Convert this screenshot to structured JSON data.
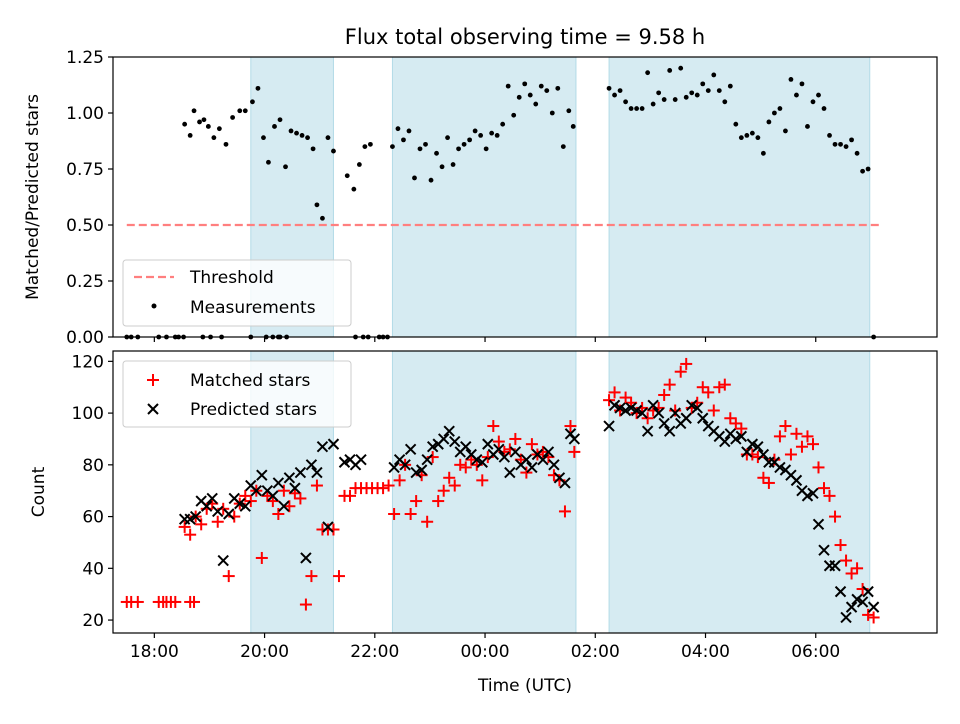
{
  "chart_data": [
    {
      "type": "scatter",
      "title": "Flux total observing time = 9.58 h",
      "ylabel": "Matched/Predicted stars",
      "xlabel": "",
      "x_unit": "hours from 00:00 UTC",
      "xlim": [
        -6.75,
        8.2
      ],
      "ylim": [
        0,
        1.25
      ],
      "yticks": [
        0.0,
        0.25,
        0.5,
        0.75,
        1.0,
        1.25
      ],
      "ytick_labels": [
        "0.00",
        "0.25",
        "0.50",
        "0.75",
        "1.00",
        "1.25"
      ],
      "threshold": {
        "name": "Threshold",
        "value": 0.5,
        "x": [
          -6.5,
          7.2
        ],
        "color": "#ff7f7f"
      },
      "legend": {
        "position": "lower-left",
        "entries": [
          "Threshold",
          "Measurements"
        ]
      },
      "shaded_intervals": [
        [
          -4.25,
          -2.75
        ],
        [
          -1.68,
          1.65
        ],
        [
          2.25,
          6.98
        ]
      ],
      "series": [
        {
          "name": "Measurements",
          "color": "#000000",
          "x": [
            -6.5,
            -6.42,
            -6.3,
            -5.92,
            -5.78,
            -5.62,
            -5.56,
            -5.47,
            -5.12,
            -4.98,
            -4.78,
            -4.25,
            -3.97,
            -3.85,
            -3.72,
            -3.75,
            -3.6,
            -2.35,
            -2.21,
            -2.12,
            -1.92,
            -1.85,
            -1.77,
            -5.45,
            -5.35,
            -5.28,
            -5.18,
            -5.1,
            -5.02,
            -4.92,
            -4.82,
            -4.7,
            -4.58,
            -4.45,
            -4.35,
            -4.22,
            -4.12,
            -4.02,
            -3.93,
            -3.82,
            -3.72,
            -3.62,
            -3.52,
            -3.42,
            -3.32,
            -3.22,
            -3.12,
            -3.05,
            -2.95,
            -2.85,
            -2.75,
            -2.5,
            -2.38,
            -2.28,
            -2.18,
            -2.08,
            -1.68,
            -1.58,
            -1.48,
            -1.38,
            -1.28,
            -1.18,
            -1.08,
            -0.98,
            -0.88,
            -0.78,
            -0.68,
            -0.58,
            -0.48,
            -0.38,
            -0.28,
            -0.18,
            -0.08,
            0.02,
            0.12,
            0.22,
            0.32,
            0.42,
            0.52,
            0.62,
            0.72,
            0.82,
            0.92,
            1.02,
            1.12,
            1.22,
            1.32,
            1.42,
            1.52,
            1.6,
            2.25,
            2.35,
            2.45,
            2.55,
            2.65,
            2.75,
            2.85,
            2.95,
            3.05,
            3.15,
            3.25,
            3.35,
            3.45,
            3.55,
            3.65,
            3.75,
            3.85,
            3.95,
            4.05,
            4.15,
            4.25,
            4.35,
            4.45,
            4.55,
            4.65,
            4.75,
            4.85,
            4.95,
            5.05,
            5.15,
            5.25,
            5.35,
            5.45,
            5.55,
            5.65,
            5.75,
            5.85,
            5.95,
            6.05,
            6.15,
            6.25,
            6.35,
            6.45,
            6.55,
            6.65,
            6.75,
            6.85,
            6.95,
            7.05
          ],
          "y": [
            0,
            0,
            0,
            0,
            0,
            0,
            0,
            0,
            0,
            0,
            0,
            0,
            0,
            0,
            0,
            0,
            0,
            0,
            0,
            0,
            0,
            0,
            0,
            0.95,
            0.9,
            1.01,
            0.96,
            0.97,
            0.94,
            0.89,
            0.93,
            0.86,
            0.98,
            1.01,
            1.01,
            1.05,
            1.11,
            0.89,
            0.78,
            0.94,
            0.97,
            0.76,
            0.92,
            0.91,
            0.9,
            0.89,
            0.84,
            0.59,
            0.53,
            0.89,
            0.83,
            0.72,
            0.66,
            0.77,
            0.85,
            0.86,
            0.85,
            0.93,
            0.88,
            0.92,
            0.71,
            0.84,
            0.86,
            0.7,
            0.82,
            0.76,
            0.89,
            0.77,
            0.84,
            0.86,
            0.88,
            0.92,
            0.9,
            0.84,
            0.91,
            0.9,
            0.95,
            1.12,
            0.99,
            1.07,
            1.13,
            1.08,
            1.04,
            1.12,
            1.1,
            1.0,
            1.11,
            0.85,
            1.01,
            0.94,
            1.11,
            1.08,
            1.1,
            1.05,
            1.02,
            1.02,
            1.02,
            1.18,
            1.04,
            1.09,
            1.06,
            1.19,
            1.06,
            1.2,
            1.07,
            1.09,
            1.08,
            1.13,
            1.1,
            1.17,
            1.1,
            1.05,
            1.12,
            0.95,
            0.89,
            0.9,
            0.91,
            0.89,
            0.82,
            0.96,
            1.0,
            1.02,
            0.92,
            1.15,
            1.08,
            1.13,
            0.94,
            1.05,
            1.08,
            1.02,
            0.9,
            0.86,
            0.86,
            0.85,
            0.88,
            0.82,
            0.74,
            0.75,
            0.0
          ]
        }
      ]
    },
    {
      "type": "scatter",
      "title": "",
      "xlabel": "Time (UTC)",
      "ylabel": "Count",
      "x_unit": "hours from 00:00 UTC",
      "xlim": [
        -6.75,
        8.2
      ],
      "ylim": [
        15,
        124
      ],
      "xticks": [
        -6,
        -4,
        -2,
        0,
        2,
        4,
        6
      ],
      "xtick_labels": [
        "18:00",
        "20:00",
        "22:00",
        "00:00",
        "02:00",
        "04:00",
        "06:00"
      ],
      "yticks": [
        20,
        40,
        60,
        80,
        100,
        120
      ],
      "ytick_labels": [
        "20",
        "40",
        "60",
        "80",
        "100",
        "120"
      ],
      "legend": {
        "position": "upper-left",
        "entries": [
          "Matched stars",
          "Predicted stars"
        ]
      },
      "shaded_intervals": [
        [
          -4.25,
          -2.75
        ],
        [
          -1.68,
          1.65
        ],
        [
          2.25,
          6.98
        ]
      ],
      "series": [
        {
          "name": "Matched stars",
          "marker": "+",
          "color": "#ff0000",
          "x": [
            -6.5,
            -6.42,
            -6.3,
            -5.92,
            -5.84,
            -5.78,
            -5.7,
            -5.62,
            -5.35,
            -5.28,
            -5.45,
            -5.35,
            -5.25,
            -5.15,
            -5.05,
            -4.95,
            -4.85,
            -4.75,
            -4.65,
            -4.55,
            -4.45,
            -4.35,
            -4.25,
            -4.15,
            -4.05,
            -3.95,
            -3.85,
            -3.75,
            -3.65,
            -3.55,
            -3.45,
            -3.35,
            -3.25,
            -3.15,
            -3.05,
            -2.95,
            -2.85,
            -2.75,
            -2.65,
            -2.55,
            -2.45,
            -2.35,
            -2.25,
            -2.15,
            -2.05,
            -1.95,
            -1.85,
            -1.75,
            -1.65,
            -1.55,
            -1.45,
            -1.35,
            -1.25,
            -1.15,
            -1.05,
            -0.95,
            -0.85,
            -0.75,
            -0.65,
            -0.55,
            -0.45,
            -0.35,
            -0.25,
            -0.15,
            -0.05,
            0.05,
            0.15,
            0.25,
            0.35,
            0.45,
            0.55,
            0.65,
            0.75,
            0.85,
            0.95,
            1.05,
            1.15,
            1.25,
            1.35,
            1.45,
            1.55,
            1.62,
            2.25,
            2.35,
            2.45,
            2.55,
            2.65,
            2.75,
            2.85,
            2.95,
            3.05,
            3.15,
            3.25,
            3.35,
            3.45,
            3.55,
            3.65,
            3.75,
            3.85,
            3.95,
            4.05,
            4.15,
            4.25,
            4.35,
            4.45,
            4.55,
            4.65,
            4.75,
            4.85,
            4.95,
            5.05,
            5.15,
            5.25,
            5.35,
            5.45,
            5.55,
            5.65,
            5.75,
            5.85,
            5.95,
            6.05,
            6.15,
            6.25,
            6.35,
            6.45,
            6.55,
            6.65,
            6.75,
            6.85,
            6.95,
            7.05
          ],
          "y": [
            27,
            27,
            27,
            27,
            27,
            27,
            27,
            27,
            27,
            27,
            56,
            53,
            60,
            57,
            63,
            65,
            58,
            63,
            37,
            60,
            65,
            68,
            66,
            70,
            44,
            68,
            66,
            61,
            70,
            64,
            69,
            67,
            26,
            37,
            72,
            55,
            55,
            55,
            37,
            68,
            68,
            71,
            71,
            71,
            71,
            71,
            71,
            72,
            61,
            74,
            80,
            61,
            66,
            76,
            58,
            83,
            66,
            70,
            75,
            72,
            80,
            79,
            82,
            80,
            74,
            83,
            95,
            89,
            85,
            86,
            90,
            82,
            77,
            88,
            84,
            85,
            83,
            76,
            74,
            62,
            95,
            85,
            105,
            108,
            101,
            106,
            104,
            100,
            102,
            98,
            101,
            102,
            107,
            111,
            101,
            116,
            119,
            102,
            104,
            110,
            108,
            101,
            110,
            111,
            98,
            96,
            94,
            84,
            84,
            83,
            75,
            73,
            82,
            91,
            95,
            84,
            92,
            87,
            91,
            88,
            79,
            71,
            68,
            60,
            49,
            43,
            38,
            40,
            32,
            22,
            21
          ],
          "hide_first_n": 1000
        },
        {
          "name": "Predicted stars",
          "marker": "x",
          "color": "#000000",
          "x": [
            -5.45,
            -5.35,
            -5.25,
            -5.15,
            -5.05,
            -4.95,
            -4.85,
            -4.75,
            -4.65,
            -4.55,
            -4.45,
            -4.35,
            -4.25,
            -4.15,
            -4.05,
            -3.95,
            -3.85,
            -3.75,
            -3.65,
            -3.55,
            -3.45,
            -3.35,
            -3.25,
            -3.15,
            -3.05,
            -2.95,
            -2.85,
            -2.75,
            -2.55,
            -2.45,
            -2.35,
            -2.25,
            -1.65,
            -1.55,
            -1.45,
            -1.35,
            -1.25,
            -1.15,
            -1.05,
            -0.95,
            -0.85,
            -0.75,
            -0.65,
            -0.55,
            -0.45,
            -0.35,
            -0.25,
            -0.15,
            -0.05,
            0.05,
            0.15,
            0.25,
            0.35,
            0.45,
            0.55,
            0.65,
            0.75,
            0.85,
            0.95,
            1.05,
            1.15,
            1.25,
            1.35,
            1.45,
            1.55,
            1.62,
            2.25,
            2.35,
            2.45,
            2.55,
            2.65,
            2.75,
            2.85,
            2.95,
            3.05,
            3.15,
            3.25,
            3.35,
            3.45,
            3.55,
            3.65,
            3.75,
            3.85,
            3.95,
            4.05,
            4.15,
            4.25,
            4.35,
            4.45,
            4.55,
            4.65,
            4.75,
            4.85,
            4.95,
            5.05,
            5.15,
            5.25,
            5.35,
            5.45,
            5.55,
            5.65,
            5.75,
            5.85,
            5.95,
            6.05,
            6.15,
            6.25,
            6.35,
            6.45,
            6.55,
            6.65,
            6.75,
            6.85,
            6.95,
            7.05
          ],
          "y": [
            59,
            59,
            60,
            66,
            64,
            67,
            62,
            43,
            61,
            67,
            65,
            64,
            72,
            70,
            76,
            70,
            68,
            73,
            64,
            75,
            71,
            77,
            44,
            80,
            77,
            87,
            56,
            88,
            81,
            82,
            80,
            82,
            79,
            82,
            80,
            86,
            77,
            78,
            82,
            87,
            88,
            90,
            93,
            89,
            85,
            87,
            84,
            82,
            81,
            88,
            84,
            86,
            83,
            77,
            85,
            80,
            82,
            79,
            84,
            82,
            85,
            80,
            75,
            73,
            92,
            90,
            95,
            103,
            102,
            101,
            102,
            101,
            100,
            93,
            103,
            100,
            96,
            93,
            100,
            96,
            98,
            103,
            102,
            98,
            95,
            93,
            91,
            89,
            92,
            90,
            91,
            85,
            88,
            87,
            84,
            81,
            81,
            79,
            78,
            76,
            74,
            70,
            68,
            69,
            57,
            47,
            41,
            41,
            31,
            21,
            25,
            28,
            27,
            31,
            25
          ]
        }
      ]
    }
  ]
}
